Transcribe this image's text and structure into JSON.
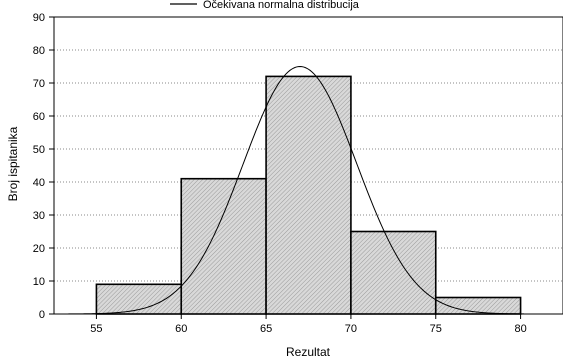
{
  "chart_data": {
    "type": "bar",
    "title": "",
    "xlabel": "Rezultat",
    "ylabel": "Broj ispitanika",
    "xlim": [
      52.5,
      82.5
    ],
    "ylim": [
      0,
      90
    ],
    "x_ticks": [
      55,
      60,
      65,
      70,
      75,
      80
    ],
    "y_ticks": [
      0,
      10,
      20,
      30,
      40,
      50,
      60,
      70,
      80,
      90
    ],
    "bins": [
      {
        "from": 55,
        "to": 60,
        "value": 9
      },
      {
        "from": 60,
        "to": 65,
        "value": 41
      },
      {
        "from": 65,
        "to": 70,
        "value": 72
      },
      {
        "from": 70,
        "to": 75,
        "value": 25
      },
      {
        "from": 75,
        "to": 80,
        "value": 5
      }
    ],
    "normal_curve": {
      "name": "Očekivana normalna distribucija",
      "mean": 67,
      "peak": 75,
      "sd": 3.35
    },
    "grid": "horizontal dotted",
    "legend": "top"
  },
  "colors": {
    "bar_fill": "#d9d9d9",
    "bar_hatch": "#8c8c8c",
    "stroke": "#000000",
    "grid": "#888888"
  }
}
